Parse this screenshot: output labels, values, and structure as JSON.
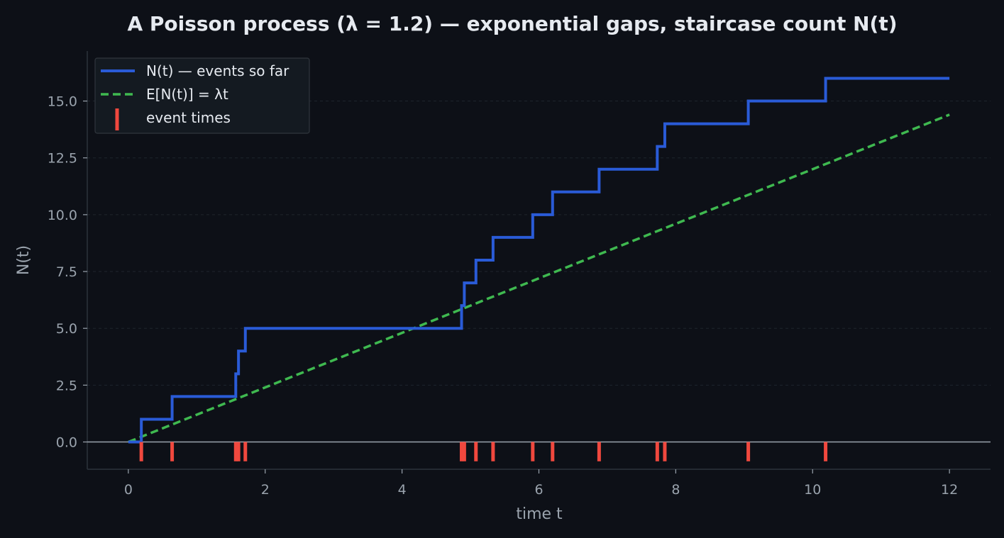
{
  "chart_data": {
    "type": "line",
    "title": "A Poisson process (λ = 1.2) — exponential gaps, staircase count N(t)",
    "xlabel": "time t",
    "ylabel": "N(t)",
    "xlim": [
      -0.6,
      12.6
    ],
    "ylim": [
      -1.2,
      17.2
    ],
    "xticks": [
      0,
      2,
      4,
      6,
      8,
      10,
      12
    ],
    "xtick_labels": [
      "0",
      "2",
      "4",
      "6",
      "8",
      "10",
      "12"
    ],
    "yticks": [
      0,
      2.5,
      5,
      7.5,
      10,
      12.5,
      15
    ],
    "ytick_labels": [
      "0.0",
      "2.5",
      "5.0",
      "7.5",
      "10.0",
      "12.5",
      "15.0"
    ],
    "grid": "horizontal, dashed",
    "legend_position": "top-left",
    "rate": 1.2,
    "t_max": 12,
    "event_times": [
      0.19,
      0.64,
      1.57,
      1.61,
      1.71,
      4.87,
      4.91,
      5.08,
      5.33,
      5.91,
      6.2,
      6.88,
      7.73,
      7.84,
      9.06,
      10.19
    ],
    "series": [
      {
        "name": "N(t) — events so far",
        "style": "step",
        "color": "#2a5bd7"
      },
      {
        "name": "E[N(t)] = λt",
        "style": "dashed",
        "color": "#3fb950",
        "x": [
          0,
          12
        ],
        "y": [
          0,
          14.4
        ]
      },
      {
        "name": "event times",
        "style": "ticks",
        "color": "#f0483e"
      }
    ],
    "colors": {
      "background": "#0d1017",
      "axis": "#2d333b",
      "zero_line": "#9aa3ad",
      "grid": "#1f252d",
      "text": "#e6eaf0",
      "muted_text": "#9aa3ad",
      "legend_bg": "#141a21",
      "legend_border": "#30363d"
    }
  }
}
